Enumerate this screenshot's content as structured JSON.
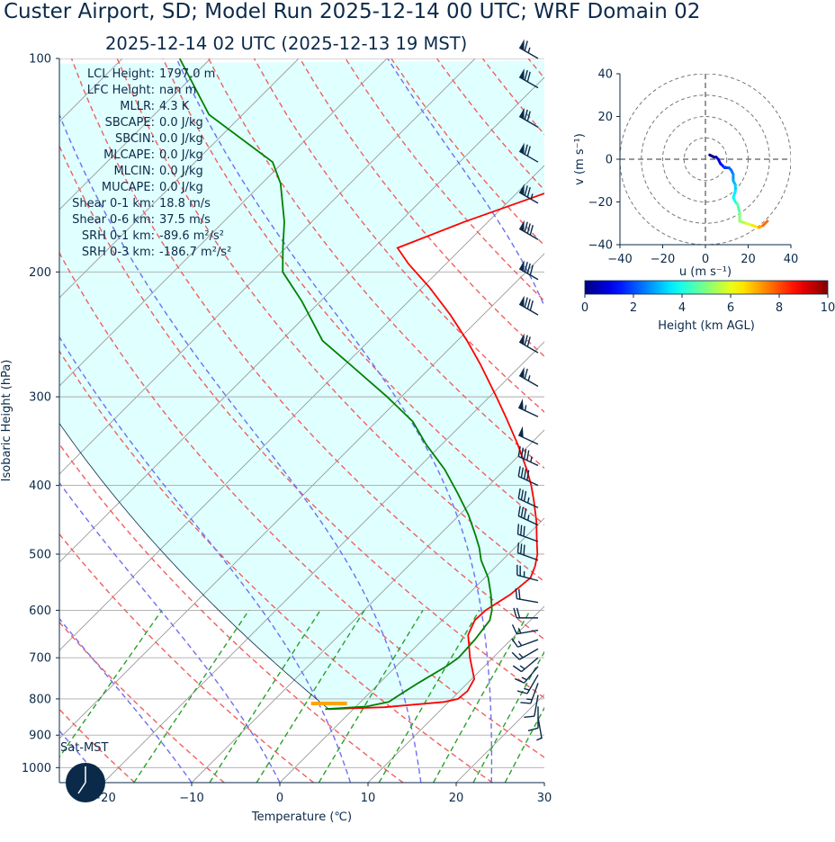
{
  "title": "Custer Airport, SD; Model Run 2025-12-14 00 UTC; WRF Domain 02",
  "subtitle": "2025-12-14 02 UTC  (2025-12-13 19 MST)",
  "clock_label": "Sat-MST",
  "colors": {
    "temperature": "#ff0000",
    "dewpoint": "#008000",
    "parcel_shade": "#e0ffff",
    "dry_adiabat": "#f06060",
    "moist_adiabat": "#6f6ff0",
    "mixing_ratio": "#2ca02c",
    "isotherm": "#999999",
    "barb": "#0b2a4a",
    "lcl_marker": "#ffa500"
  },
  "stats": [
    {
      "label": "LCL Height:",
      "value": "1797.0 m"
    },
    {
      "label": "LFC Height:",
      "value": "nan m"
    },
    {
      "label": "MLLR:",
      "value": "4.3 K"
    },
    {
      "label": "SBCAPE:",
      "value": "0.0 J/kg"
    },
    {
      "label": "SBCIN:",
      "value": "0.0 J/kg"
    },
    {
      "label": "MLCAPE:",
      "value": "0.0 J/kg"
    },
    {
      "label": "MLCIN:",
      "value": "0.0 J/kg"
    },
    {
      "label": "MUCAPE:",
      "value": "0.0 J/kg"
    },
    {
      "label": "Shear 0-1 km:",
      "value": "18.8 m/s"
    },
    {
      "label": "Shear 0-6 km:",
      "value": "37.5 m/s"
    },
    {
      "label": "SRH 0-1 km:",
      "value": "-89.6 m²/s²"
    },
    {
      "label": "SRH 0-3 km:",
      "value": "-186.7 m²/s²"
    }
  ],
  "chart_data": [
    {
      "type": "line",
      "chart": "skew-t log-p",
      "xlabel": "Temperature (℃)",
      "ylabel": "Isobaric Height (hPa)",
      "xlim": [
        -25,
        30
      ],
      "ylim": [
        1050,
        100
      ],
      "yscale": "log",
      "skew_deg": 45,
      "xticks": [
        -20,
        -10,
        0,
        10,
        20,
        30
      ],
      "xtick_labels": [
        "−20",
        "−10",
        "0",
        "10",
        "20",
        "30"
      ],
      "yticks": [
        100,
        200,
        300,
        400,
        500,
        600,
        700,
        800,
        900,
        1000
      ],
      "ytick_labels": [
        "100",
        "200",
        "300",
        "400",
        "500",
        "600",
        "700",
        "800",
        "900",
        "1000"
      ],
      "grid": true,
      "series": [
        {
          "role": "temperature",
          "pressure": [
            827,
            822,
            808,
            800,
            780,
            750,
            700,
            650,
            620,
            600,
            570,
            540,
            520,
            500,
            480,
            450,
            420,
            400,
            380,
            350,
            320,
            300,
            270,
            250,
            230,
            210,
            195,
            185,
            170,
            155,
            140,
            125,
            115,
            100
          ],
          "temp": [
            -2.8,
            3.3,
            9.5,
            10.7,
            10.9,
            10.3,
            7.4,
            4.6,
            3.7,
            3.8,
            4.8,
            5.2,
            4.4,
            3.3,
            1.8,
            -0.5,
            -3.2,
            -5.2,
            -7.5,
            -11.4,
            -15.9,
            -19.2,
            -24.7,
            -28.9,
            -33.7,
            -39.3,
            -44.2,
            -47.3,
            -42.7,
            -36.8,
            -30.4,
            -23.9,
            -19.6,
            -13.8
          ]
        },
        {
          "role": "dewpoint",
          "pressure": [
            827,
            820,
            808,
            790,
            760,
            720,
            700,
            660,
            620,
            600,
            570,
            540,
            510,
            490,
            470,
            440,
            410,
            380,
            350,
            325,
            300,
            270,
            250,
            220,
            200,
            185,
            170,
            150,
            140,
            120,
            100
          ],
          "temp": [
            -3.2,
            1.2,
            3.2,
            3.6,
            4.4,
            5.7,
            6.1,
            5.9,
            5.4,
            4.5,
            2.6,
            0.4,
            -2.4,
            -4.0,
            -5.9,
            -9.0,
            -12.7,
            -16.8,
            -21.8,
            -25.9,
            -31.6,
            -39.5,
            -45.3,
            -52.1,
            -57.6,
            -60.3,
            -63.1,
            -67.9,
            -71.2,
            -83.8,
            -93.5
          ]
        },
        {
          "role": "parcel",
          "pressure": [
            827,
            100
          ],
          "temp": [
            -2.8,
            -98.6
          ]
        }
      ],
      "lcl_pressure": 812,
      "lcl_temp": -3.4
    },
    {
      "type": "line",
      "chart": "hodograph",
      "xlabel": "u (m s⁻¹)",
      "ylabel": "v (m s⁻¹)",
      "xlim": [
        -40,
        40
      ],
      "ylim": [
        -40,
        40
      ],
      "xticks": [
        -40,
        -20,
        0,
        20,
        40
      ],
      "xtick_labels": [
        "−40",
        "−20",
        "0",
        "20",
        "40"
      ],
      "yticks": [
        -40,
        -20,
        0,
        20,
        40
      ],
      "ytick_labels": [
        "−40",
        "−20",
        "0",
        "20",
        "40"
      ],
      "rings": [
        10,
        20,
        30,
        40
      ],
      "u": [
        2,
        4,
        5,
        6,
        7,
        8,
        9,
        11,
        12,
        13,
        13,
        14,
        14,
        13,
        14,
        15,
        16,
        16,
        19,
        22,
        25,
        27,
        29
      ],
      "v": [
        2,
        1,
        1,
        0,
        -2,
        -3,
        -4,
        -4,
        -5,
        -7,
        -10,
        -12,
        -15,
        -18,
        -20,
        -21,
        -25,
        -29,
        -30,
        -31,
        -32,
        -31,
        -29
      ],
      "height_km": [
        0.0,
        0.3,
        0.6,
        0.9,
        1.2,
        1.5,
        1.8,
        2.1,
        2.4,
        2.7,
        3.0,
        3.3,
        3.6,
        3.9,
        4.2,
        4.6,
        5.0,
        5.4,
        5.9,
        6.5,
        7.1,
        7.7,
        8.3
      ],
      "colorbar": {
        "label": "Height (km AGL)",
        "ticks": [
          0,
          2,
          4,
          6,
          8,
          10
        ],
        "tick_labels": [
          "0",
          "2",
          "4",
          "6",
          "8",
          "10"
        ],
        "colormap": "jet",
        "range": [
          0,
          10
        ]
      }
    }
  ],
  "barbs": {
    "pressure": [
      100,
      110,
      125,
      140,
      160,
      180,
      205,
      230,
      260,
      290,
      320,
      350,
      375,
      400,
      430,
      455,
      480,
      510,
      545,
      585,
      615,
      640,
      660,
      680,
      700,
      720,
      740,
      760,
      790,
      820,
      850
    ],
    "speed_kt": [
      65,
      70,
      70,
      70,
      75,
      80,
      80,
      80,
      70,
      65,
      55,
      50,
      45,
      40,
      35,
      35,
      30,
      30,
      25,
      20,
      20,
      15,
      15,
      15,
      15,
      15,
      15,
      15,
      10,
      10,
      5
    ],
    "direction_deg": [
      300,
      300,
      300,
      300,
      300,
      300,
      300,
      300,
      300,
      300,
      295,
      295,
      295,
      295,
      295,
      295,
      290,
      290,
      285,
      280,
      270,
      260,
      250,
      240,
      230,
      220,
      210,
      200,
      190,
      180,
      170
    ]
  }
}
